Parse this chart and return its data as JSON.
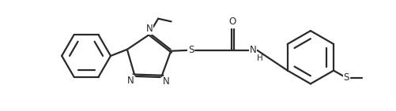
{
  "bg_color": "#ffffff",
  "line_color": "#2a2a2a",
  "line_width": 1.6,
  "font_size": 8.5,
  "figsize": [
    5.02,
    1.41
  ],
  "dpi": 100,
  "xlim": [
    0.0,
    5.02
  ],
  "ylim": [
    0.3,
    1.85
  ]
}
